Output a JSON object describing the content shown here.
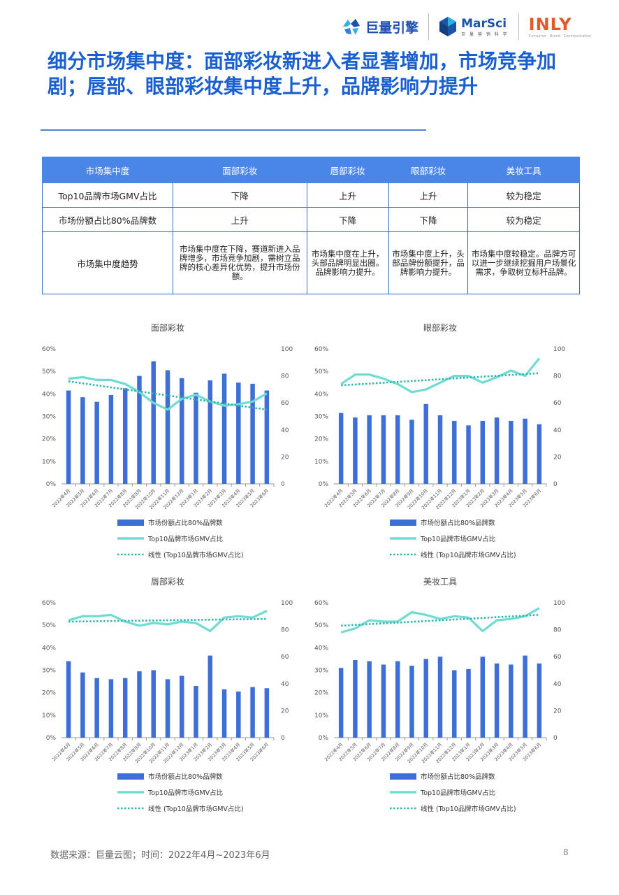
{
  "header": {
    "logos": [
      {
        "name": "巨量引擎"
      },
      {
        "name": "MarSci",
        "subtitle": "巨 量 营 销 科 学"
      },
      {
        "name": "INLY",
        "subtitle": "Consumer · Brand · Communication"
      }
    ]
  },
  "title": "细分市场集中度：面部彩妆新进入者显著增加，市场竞争加剧；唇部、眼部彩妆集中度上升，品牌影响力提升",
  "table": {
    "headers": [
      "市场集中度",
      "面部彩妆",
      "唇部彩妆",
      "眼部彩妆",
      "美妆工具"
    ],
    "rows": [
      [
        "Top10品牌市场GMV占比",
        "下降",
        "上升",
        "上升",
        "较为稳定"
      ],
      [
        "市场份额占比80%品牌数",
        "上升",
        "下降",
        "下降",
        "较为稳定"
      ],
      [
        "市场集中度趋势",
        "市场集中度在下降，赛道新进入品牌增多，市场竞争加剧，需树立品牌的核心差异化优势，提升市场份额。",
        "市场集中度在上升，头部品牌明显出圈。品牌影响力提升。",
        "市场集中度上升，头部品牌份额提升，品牌影响力提升。",
        "市场集中度较稳定。品牌方可以进一步继续挖掘用户场景化需求，争取树立标杆品牌。"
      ]
    ]
  },
  "legend": {
    "bar": "市场份额占比80%品牌数",
    "line": "Top10品牌市场GMV占比",
    "trend": "线性 (Top10品牌市场GMV占比)"
  },
  "colors": {
    "bar": "#3d6fd6",
    "line": "#6fdcd4",
    "trend": "#2fb5ad",
    "title": "#1a5fd0"
  },
  "chart_data": [
    {
      "type": "bar",
      "title": "面部彩妆",
      "categories": [
        "2022年4月",
        "2022年5月",
        "2022年6月",
        "2022年7月",
        "2022年8月",
        "2022年9月",
        "2022年10月",
        "2022年11月",
        "2022年12月",
        "2023年1月",
        "2023年2月",
        "2023年3月",
        "2023年4月",
        "2023年5月",
        "2023年6月"
      ],
      "series": [
        {
          "name": "市场份额占比80%品牌数",
          "axis": "left",
          "values": [
            41.5,
            38.5,
            36.5,
            39.5,
            42.5,
            48,
            54.5,
            50.5,
            47,
            40.5,
            46,
            49,
            45,
            44.5,
            41.5
          ]
        },
        {
          "name": "Top10品牌市场GMV占比",
          "axis": "right",
          "values": [
            78,
            79,
            77,
            77,
            74,
            68,
            60,
            55,
            63,
            66,
            61,
            58,
            59,
            61,
            67
          ]
        }
      ],
      "trend": [
        76,
        55
      ],
      "ylim": [
        0,
        60
      ],
      "yticks": [
        "0%",
        "10%",
        "20%",
        "30%",
        "40%",
        "50%",
        "60%"
      ],
      "y2lim": [
        0,
        100
      ],
      "y2ticks": [
        "0",
        "20",
        "40",
        "60",
        "80",
        "100"
      ]
    },
    {
      "type": "bar",
      "title": "眼部彩妆",
      "categories": [
        "2022年4月",
        "2022年5月",
        "2022年6月",
        "2022年7月",
        "2022年8月",
        "2022年9月",
        "2022年10月",
        "2022年11月",
        "2022年12月",
        "2023年1月",
        "2023年2月",
        "2023年3月",
        "2023年4月",
        "2023年5月",
        "2023年6月"
      ],
      "series": [
        {
          "name": "市场份额占比80%品牌数",
          "axis": "left",
          "values": [
            31.5,
            29.5,
            30.5,
            30.5,
            30.5,
            28.5,
            35.5,
            30.5,
            28,
            26,
            28,
            29.5,
            28,
            29,
            26.5
          ]
        },
        {
          "name": "Top10品牌市场GMV占比",
          "axis": "right",
          "values": [
            74,
            81,
            81,
            78,
            74,
            68,
            70,
            75,
            80,
            80,
            75,
            79,
            84,
            80,
            93
          ]
        }
      ],
      "trend": [
        73,
        82
      ],
      "ylim": [
        0,
        60
      ],
      "yticks": [
        "0%",
        "10%",
        "20%",
        "30%",
        "40%",
        "50%",
        "60%"
      ],
      "y2lim": [
        0,
        100
      ],
      "y2ticks": [
        "0",
        "20",
        "40",
        "60",
        "80",
        "100"
      ]
    },
    {
      "type": "bar",
      "title": "唇部彩妆",
      "categories": [
        "2022年4月",
        "2022年5月",
        "2022年6月",
        "2022年7月",
        "2022年8月",
        "2022年9月",
        "2022年10月",
        "2022年11月",
        "2022年12月",
        "2023年1月",
        "2023年2月",
        "2023年3月",
        "2023年4月",
        "2023年5月",
        "2023年6月"
      ],
      "series": [
        {
          "name": "市场份额占比80%品牌数",
          "axis": "left",
          "values": [
            34,
            29,
            26.5,
            26,
            26.5,
            29.5,
            30,
            26,
            27.5,
            23,
            36.5,
            21.5,
            20.5,
            22.5,
            22
          ]
        },
        {
          "name": "Top10品牌市场GMV占比",
          "axis": "right",
          "values": [
            87,
            90,
            90,
            91,
            86,
            83,
            85,
            84,
            86,
            85,
            79,
            89,
            90,
            89,
            94
          ]
        }
      ],
      "trend": [
        86,
        88
      ],
      "ylim": [
        0,
        60
      ],
      "yticks": [
        "0%",
        "10%",
        "20%",
        "30%",
        "40%",
        "50%",
        "60%"
      ],
      "y2lim": [
        0,
        100
      ],
      "y2ticks": [
        "0",
        "20",
        "40",
        "60",
        "80",
        "100"
      ]
    },
    {
      "type": "bar",
      "title": "美妆工具",
      "categories": [
        "2022年4月",
        "2022年5月",
        "2022年6月",
        "2022年7月",
        "2022年8月",
        "2022年9月",
        "2022年10月",
        "2022年11月",
        "2022年12月",
        "2023年1月",
        "2023年2月",
        "2023年3月",
        "2023年4月",
        "2023年5月",
        "2023年6月"
      ],
      "series": [
        {
          "name": "市场份额占比80%品牌数",
          "axis": "left",
          "values": [
            31,
            34.5,
            34,
            32.5,
            34,
            32,
            35,
            36,
            30,
            30.5,
            36,
            33,
            32.5,
            36.5,
            33
          ]
        },
        {
          "name": "Top10品牌市场GMV占比",
          "axis": "right",
          "values": [
            78,
            81,
            87,
            86,
            86,
            93,
            91,
            88,
            90,
            89,
            79,
            87,
            88,
            90,
            96
          ]
        }
      ],
      "trend": [
        83,
        91
      ],
      "ylim": [
        0,
        60
      ],
      "yticks": [
        "0%",
        "10%",
        "20%",
        "30%",
        "40%",
        "50%",
        "60%"
      ],
      "y2lim": [
        0,
        100
      ],
      "y2ticks": [
        "0",
        "20",
        "40",
        "60",
        "80",
        "100"
      ]
    }
  ],
  "footer": {
    "source": "数据来源：巨量云图；时间：2022年4月~2023年6月",
    "page": "8"
  }
}
